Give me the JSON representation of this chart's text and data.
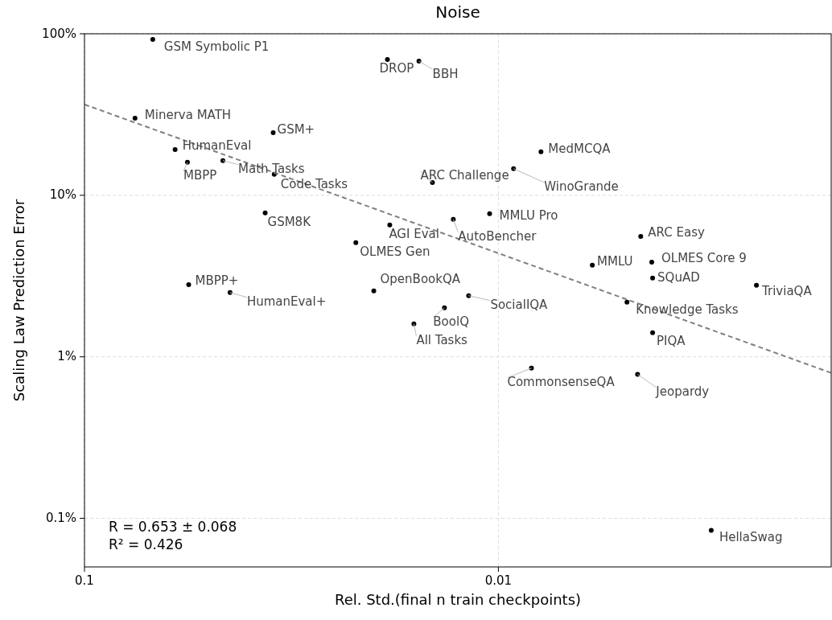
{
  "chart_data": {
    "type": "scatter",
    "title": "Noise",
    "xlabel": "Rel. Std.(final n train checkpoints)",
    "ylabel": "Scaling Law Prediction Error",
    "log": "xy",
    "grid": true,
    "xlim": [
      0.1,
      0.00157
    ],
    "xticks": [
      0.1,
      0.01
    ],
    "ylim": [
      0.05,
      100
    ],
    "yticks": [
      {
        "value": 0.1,
        "label": "0.1%"
      },
      {
        "value": 1,
        "label": "1%"
      },
      {
        "value": 10,
        "label": "10%"
      },
      {
        "value": 100,
        "label": "100%"
      }
    ],
    "series": [
      {
        "color": "#000000",
        "marker": "circle",
        "x": [
          0.0684,
          0.01854,
          0.01556,
          0.0755,
          0.035,
          0.0604,
          0.0564,
          0.0463,
          0.0348,
          0.00789,
          0.00919,
          0.01443,
          0.0366,
          0.0105,
          0.01285,
          0.0183,
          0.00453,
          0.0221,
          0.00426,
          0.00593,
          0.00424,
          0.00238,
          0.056,
          0.02,
          0.0445,
          0.0118,
          0.00489,
          0.0135,
          0.016,
          0.00424,
          0.00832,
          0.00461,
          0.00306
        ],
        "values": [
          92.3,
          69.3,
          67.7,
          30.0,
          24.4,
          19.2,
          16.0,
          16.4,
          13.5,
          18.6,
          14.6,
          12.0,
          7.77,
          7.69,
          7.09,
          6.55,
          5.57,
          5.09,
          3.86,
          3.69,
          3.07,
          2.77,
          2.8,
          2.56,
          2.5,
          2.39,
          2.18,
          2.01,
          1.6,
          1.41,
          0.851,
          0.778,
          0.0842
        ]
      },
      {
        "type": "line",
        "color": "#808080",
        "line_style": "dashed",
        "marker": "none",
        "x": [
          0.1,
          0.00157
        ],
        "values": [
          36.5,
          0.795
        ]
      }
    ],
    "annotations": [
      {
        "text": "GSM Symbolic P1",
        "x": 0.0684,
        "y": 92.3
      },
      {
        "text": "DROP",
        "x": 0.01854,
        "y": 69.3
      },
      {
        "text": "BBH",
        "x": 0.01556,
        "y": 67.7
      },
      {
        "text": "Minerva MATH",
        "x": 0.0755,
        "y": 30.0
      },
      {
        "text": "GSM+",
        "x": 0.035,
        "y": 24.4
      },
      {
        "text": "HumanEval",
        "x": 0.0604,
        "y": 19.2
      },
      {
        "text": "MBPP",
        "x": 0.0564,
        "y": 16.0
      },
      {
        "text": "Math Tasks",
        "x": 0.0463,
        "y": 16.4
      },
      {
        "text": "Code Tasks",
        "x": 0.0348,
        "y": 13.5
      },
      {
        "text": "MedMCQA",
        "x": 0.00789,
        "y": 18.6
      },
      {
        "text": "WinoGrande",
        "x": 0.00919,
        "y": 14.6
      },
      {
        "text": "ARC Challenge",
        "x": 0.01443,
        "y": 12.0
      },
      {
        "text": "GSM8K",
        "x": 0.0366,
        "y": 7.77
      },
      {
        "text": "MMLU Pro",
        "x": 0.0105,
        "y": 7.69
      },
      {
        "text": "AutoBencher",
        "x": 0.01285,
        "y": 7.09
      },
      {
        "text": "AGI Eval",
        "x": 0.0183,
        "y": 6.55
      },
      {
        "text": "ARC Easy",
        "x": 0.00453,
        "y": 5.57
      },
      {
        "text": "OLMES Gen",
        "x": 0.0221,
        "y": 5.09
      },
      {
        "text": "OLMES Core 9",
        "x": 0.00426,
        "y": 3.86
      },
      {
        "text": "MMLU",
        "x": 0.00593,
        "y": 3.69
      },
      {
        "text": "SQuAD",
        "x": 0.00424,
        "y": 3.07
      },
      {
        "text": "TriviaQA",
        "x": 0.00238,
        "y": 2.77
      },
      {
        "text": "MBPP+",
        "x": 0.056,
        "y": 2.8
      },
      {
        "text": "OpenBookQA",
        "x": 0.02,
        "y": 2.56
      },
      {
        "text": "HumanEval+",
        "x": 0.0445,
        "y": 2.5
      },
      {
        "text": "SocialIQA",
        "x": 0.0118,
        "y": 2.39
      },
      {
        "text": "Knowledge Tasks",
        "x": 0.00489,
        "y": 2.18
      },
      {
        "text": "BoolQ",
        "x": 0.0135,
        "y": 2.01
      },
      {
        "text": "All Tasks",
        "x": 0.016,
        "y": 1.6
      },
      {
        "text": "PIQA",
        "x": 0.00424,
        "y": 1.41
      },
      {
        "text": "CommonsenseQA",
        "x": 0.00832,
        "y": 0.851
      },
      {
        "text": "Jeopardy",
        "x": 0.00461,
        "y": 0.778
      },
      {
        "text": "HellaSwag",
        "x": 0.00306,
        "y": 0.0842
      },
      "R = 0.653 ± 0.068",
      "R² = 0.426"
    ]
  }
}
